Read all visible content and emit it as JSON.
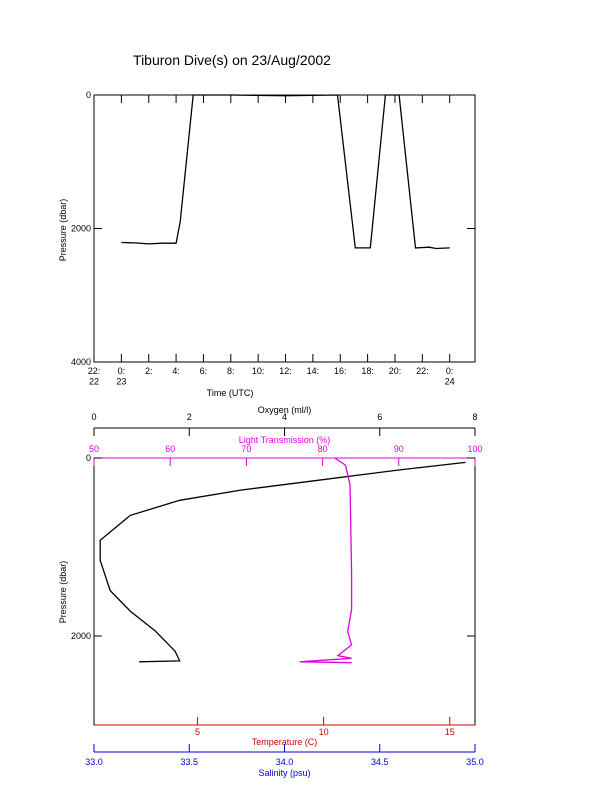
{
  "chart_data": [
    {
      "type": "line",
      "title": "Tiburon Dive(s) on 23/Aug/2002",
      "xlabel": "Time (UTC)",
      "ylabel": "Pressure (dbar)",
      "xlim": [
        -2,
        25.85
      ],
      "ylim": [
        4000,
        0
      ],
      "xticks": [
        {
          "value": -2,
          "label": "22:\n22"
        },
        {
          "value": 0,
          "label": "0:\n23"
        },
        {
          "value": 2,
          "label": "2:"
        },
        {
          "value": 4,
          "label": "4:"
        },
        {
          "value": 6,
          "label": "6:"
        },
        {
          "value": 8,
          "label": "8:"
        },
        {
          "value": 10,
          "label": "10:"
        },
        {
          "value": 12,
          "label": "12:"
        },
        {
          "value": 14,
          "label": "14:"
        },
        {
          "value": 16,
          "label": "16:"
        },
        {
          "value": 18,
          "label": "18:"
        },
        {
          "value": 20,
          "label": "20:"
        },
        {
          "value": 22,
          "label": "22:"
        },
        {
          "value": 24,
          "label": "0:\n24"
        }
      ],
      "yticks": [
        0,
        2000,
        4000
      ],
      "series": [
        {
          "color": "#000000",
          "x": [
            0,
            1,
            2,
            3,
            4,
            4.3,
            5.25,
            8,
            12,
            15.8,
            17.1,
            18.2,
            19.3,
            20.3,
            21.5,
            22.5,
            23,
            24
          ],
          "values": [
            2210,
            2215,
            2230,
            2220,
            2220,
            1900,
            0,
            0,
            10,
            0,
            2290,
            2290,
            0,
            0,
            2290,
            2280,
            2300,
            2290
          ]
        }
      ]
    },
    {
      "type": "profile",
      "ylabel": "Pressure (dbar)",
      "ylim": [
        3000,
        0
      ],
      "yticks": [
        0,
        2000
      ],
      "xaxes": [
        {
          "label": "Oxygen (ml/l)",
          "lim": [
            0,
            8
          ],
          "ticks": [
            0,
            2,
            4,
            6,
            8
          ],
          "color": "#000000"
        },
        {
          "label": "Light Transmission (%)",
          "lim": [
            50,
            100
          ],
          "ticks": [
            50,
            60,
            70,
            80,
            90,
            100
          ],
          "color": "#e000e0"
        },
        {
          "label": "Temperature (C)",
          "lim": [
            0.9,
            16
          ],
          "ticks": [
            5,
            10,
            15
          ],
          "color": "#d00000"
        },
        {
          "label": "Salinity (psu)",
          "lim": [
            33,
            35
          ],
          "ticks": [
            {
              "value": 33,
              "label": "33.0"
            },
            {
              "value": 33.5,
              "label": "33.5"
            },
            {
              "value": 34,
              "label": "34.0"
            },
            {
              "value": 34.5,
              "label": "34.5"
            },
            {
              "value": 35,
              "label": "35.0"
            }
          ],
          "color": "#0000d0"
        }
      ],
      "series": [
        {
          "axis": 0,
          "color": "#000000",
          "x": [
            7.8,
            6.4,
            4.7,
            3.1,
            1.8,
            0.76,
            0.13,
            0.13,
            0.34,
            0.76,
            1.28,
            1.7,
            1.8,
            0.95
          ],
          "values": [
            50,
            135,
            250,
            360,
            475,
            645,
            925,
            1150,
            1490,
            1720,
            1940,
            2170,
            2280,
            2290
          ]
        },
        {
          "axis": 1,
          "color": "#e000e0",
          "x": [
            81.6,
            83.0,
            83.6,
            83.7,
            83.8,
            83.8,
            83.3,
            83.8,
            82.0,
            83.8,
            77,
            83.8
          ],
          "values": [
            0,
            80,
            300,
            800,
            1300,
            1700,
            1950,
            2100,
            2220,
            2250,
            2290,
            2300
          ]
        }
      ]
    }
  ]
}
